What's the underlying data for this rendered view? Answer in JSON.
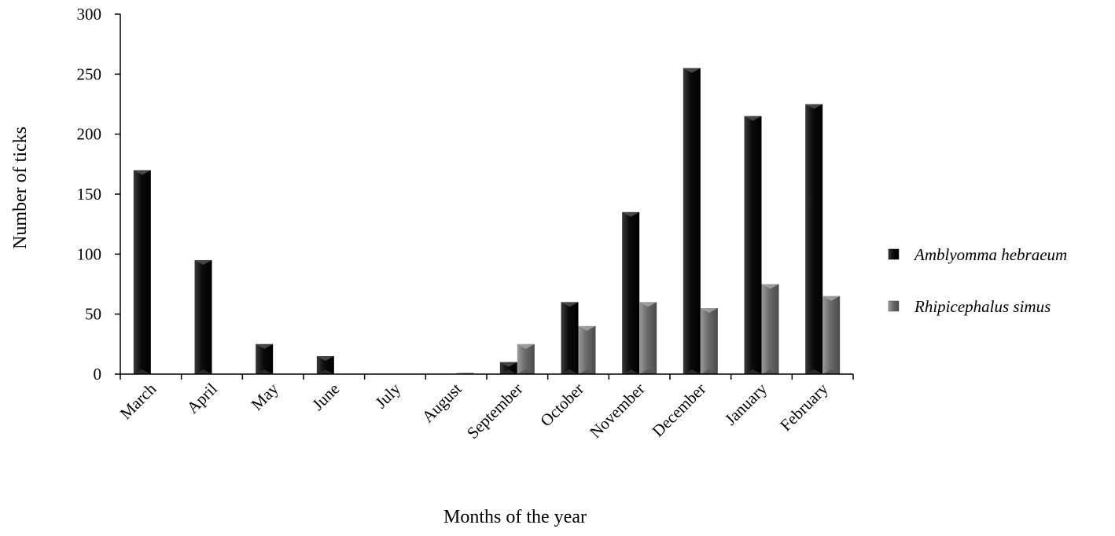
{
  "chart_data": {
    "type": "bar",
    "title": "",
    "xlabel": "Months of the year",
    "ylabel": "Number of ticks",
    "ylim": [
      0,
      300
    ],
    "yticks": [
      0,
      50,
      100,
      150,
      200,
      250,
      300
    ],
    "grid": false,
    "legend_position": "right",
    "categories": [
      "March",
      "April",
      "May",
      "June",
      "July",
      "August",
      "September",
      "October",
      "November",
      "December",
      "January",
      "February"
    ],
    "series": [
      {
        "name": "Amblyomma hebraeum",
        "color": "#111111",
        "values": [
          170,
          95,
          25,
          15,
          0,
          0,
          10,
          60,
          135,
          255,
          215,
          225
        ]
      },
      {
        "name": "Rhipicephalus simus",
        "color": "#6e6e6e",
        "values": [
          0,
          0,
          0,
          0,
          0,
          1,
          25,
          40,
          60,
          55,
          75,
          65
        ]
      }
    ]
  }
}
